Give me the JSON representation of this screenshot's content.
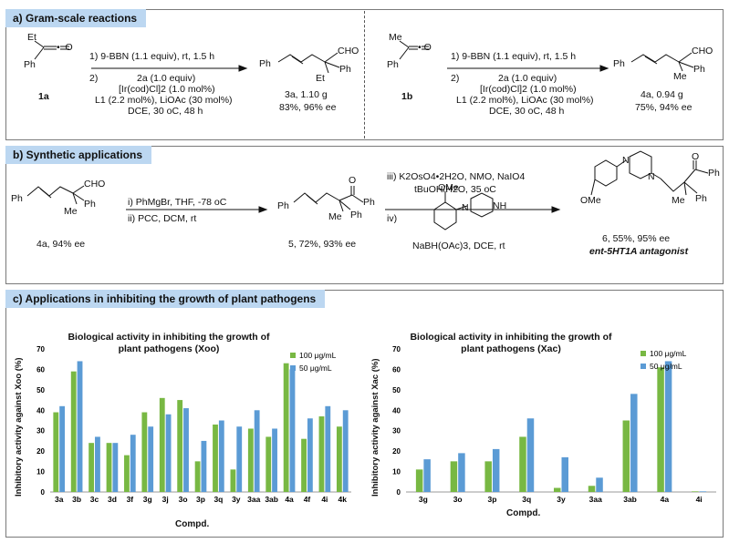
{
  "sections": {
    "a_title": "a) Gram-scale reactions",
    "b_title": "b) Synthetic applications",
    "c_title": "c) Applications in inhibiting the growth of plant pathogens"
  },
  "scheme_a": {
    "left": {
      "sub_et": "Et",
      "sub_ph": "Ph",
      "sub_label": "1a",
      "step1": "1) 9-BBN (1.1 equiv), rt, 1.5 h",
      "step2_num": "2)",
      "step2a": "2a (1.0 equiv)",
      "step2b": "[Ir(cod)Cl]2 (1.0 mol%)",
      "step2c": "L1 (2.2 mol%), LiOAc (30 mol%)",
      "step2d": "DCE, 30 oC, 48 h",
      "prod_ph1": "Ph",
      "prod_cho": "CHO",
      "prod_et": "Et",
      "prod_ph2": "Ph",
      "prod_label": "3a, 1.10 g",
      "prod_yield": "83%, 96% ee"
    },
    "right": {
      "sub_me": "Me",
      "sub_ph": "Ph",
      "sub_label": "1b",
      "step1": "1) 9-BBN (1.1 equiv), rt, 1.5 h",
      "step2_num": "2)",
      "step2a": "2a (1.0 equiv)",
      "step2b": "[Ir(cod)Cl]2 (1.0 mol%)",
      "step2c": "L1 (2.2 mol%), LiOAc (30 mol%)",
      "step2d": "DCE, 30 oC, 48 h",
      "prod_ph1": "Ph",
      "prod_cho": "CHO",
      "prod_me": "Me",
      "prod_ph2": "Ph",
      "prod_label": "4a, 0.94 g",
      "prod_yield": "75%, 94% ee"
    }
  },
  "scheme_b": {
    "sm_ph": "Ph",
    "sm_cho": "CHO",
    "sm_me": "Me",
    "sm_ph2": "Ph",
    "sm_label": "4a, 94% ee",
    "cond1": "i) PhMgBr, THF, -78 oC",
    "cond2": "ii) PCC, DCM, rt",
    "mid_ph": "Ph",
    "mid_o": "O",
    "mid_me": "Me",
    "mid_ph2": "Ph",
    "mid_ph3": "Ph",
    "mid_label": "5, 72%, 93% ee",
    "cond3": "iii) K2OsO4•2H2O, NMO, NaIO4",
    "cond4": "tBuOH/H2O, 35 oC",
    "cond5": "iv)",
    "reagent_ome": "OMe",
    "reagent_nh": "NH",
    "reagent_n": "N",
    "cond6": "NaBH(OAc)3, DCE, rt",
    "fp_n1": "N",
    "fp_n2": "N",
    "fp_ome": "OMe",
    "fp_o": "O",
    "fp_me": "Me",
    "fp_ph": "Ph",
    "fp_ph2": "Ph",
    "fp_label": "6, 55%, 95% ee",
    "fp_name": "ent-5HT1A antagonist"
  },
  "colors": {
    "series1": "#78b843",
    "series2": "#5b9bd5",
    "header_bg": "#bcd7f1"
  },
  "chart_data": [
    {
      "type": "bar",
      "title": "Biological activity in inhibiting the growth of plant pathogens (Xoo)",
      "xlabel": "Compd.",
      "ylabel": "Inhibitory activity against Xoo (%)",
      "ylim": [
        0,
        70
      ],
      "yticks": [
        "0",
        "10",
        "20",
        "30",
        "40",
        "50",
        "60",
        "70"
      ],
      "legend": "top-right",
      "categories": [
        "3a",
        "3b",
        "3c",
        "3d",
        "3f",
        "3g",
        "3j",
        "3o",
        "3p",
        "3q",
        "3y",
        "3aa",
        "3ab",
        "4a",
        "4f",
        "4i",
        "4k"
      ],
      "series": [
        {
          "name": "100 μg/mL",
          "values": [
            39,
            59,
            24,
            24,
            18,
            39,
            46,
            45,
            15,
            33,
            11,
            31,
            27,
            63,
            26,
            37,
            32
          ]
        },
        {
          "name": "50 μg/mL",
          "values": [
            42,
            64,
            27,
            24,
            28,
            32,
            38,
            41,
            25,
            35,
            32,
            40,
            31,
            60,
            36,
            42,
            40
          ]
        }
      ]
    },
    {
      "type": "bar",
      "title": "Biological activity in inhibiting the growth of plant pathogens (Xac)",
      "xlabel": "Compd.",
      "ylabel": "Inhibitory activity against Xac (%)",
      "ylim": [
        0,
        70
      ],
      "yticks": [
        "0",
        "10",
        "20",
        "30",
        "40",
        "50",
        "60",
        "70"
      ],
      "legend": "top-right",
      "categories": [
        "3g",
        "3o",
        "3p",
        "3q",
        "3y",
        "3aa",
        "3ab",
        "4a",
        "4i"
      ],
      "series": [
        {
          "name": "100 μg/mL",
          "values": [
            11,
            15,
            15,
            27,
            2,
            3,
            35,
            61,
            0.3
          ]
        },
        {
          "name": "50 μg/mL",
          "values": [
            16,
            19,
            21,
            36,
            17,
            7,
            48,
            64,
            0.3
          ]
        }
      ]
    }
  ]
}
